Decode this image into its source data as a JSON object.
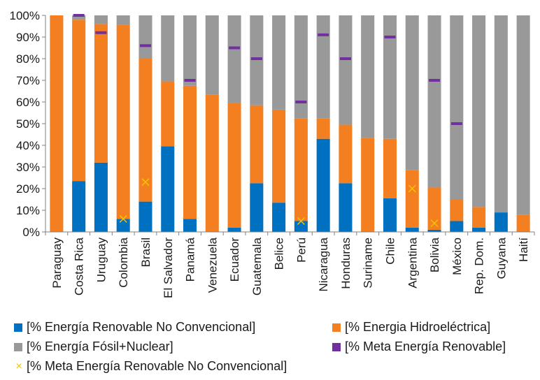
{
  "chart_data": {
    "type": "bar",
    "stacked": true,
    "categories": [
      "Paraguay",
      "Costa Rica",
      "Uruguay",
      "Colombia",
      "Brasil",
      "El Salvador",
      "Panamá",
      "Venezuela",
      "Ecuador",
      "Guatemala",
      "Belice",
      "Perú",
      "Nicaragua",
      "Honduras",
      "Suriname",
      "Chile",
      "Argentina",
      "Bolivia",
      "México",
      "Rep. Dom.",
      "Guyana",
      "Haití"
    ],
    "series": [
      {
        "name": "[% Energía Renovable No Convencional]",
        "color": "#0070c0",
        "values": [
          0,
          23.5,
          32,
          6,
          14,
          39.5,
          6,
          0,
          2,
          22.5,
          13.5,
          5,
          43,
          22.5,
          0,
          15.5,
          2,
          1,
          5,
          2,
          9,
          0
        ]
      },
      {
        "name": "[% Energia Hidroeléctrica]",
        "color": "#f47f20",
        "values": [
          100,
          74.5,
          64,
          89.5,
          66,
          30,
          61.5,
          63.5,
          57.5,
          36,
          43,
          47.5,
          9.5,
          27,
          43.5,
          27.5,
          26.5,
          19.5,
          10,
          9.5,
          0,
          8
        ]
      },
      {
        "name": "[% Energía Fósil+Nuclear]",
        "color": "#999999",
        "values": [
          0,
          2,
          4,
          4.5,
          20,
          30.5,
          32.5,
          36.5,
          40.5,
          41.5,
          43.5,
          47.5,
          47.5,
          50.5,
          56.5,
          57,
          71.5,
          79.5,
          85,
          88.5,
          91,
          92
        ]
      }
    ],
    "targets": [
      {
        "name": "[% Meta Energía Renovable]",
        "color": "#7030a0",
        "marker": "dash",
        "values": [
          null,
          100,
          92,
          null,
          86,
          null,
          70,
          null,
          85,
          80,
          null,
          60,
          91,
          80,
          null,
          90,
          null,
          70,
          50,
          null,
          null,
          null
        ]
      },
      {
        "name": "[% Meta Energía Renovable No Convencional]",
        "color": "#f5c400",
        "marker": "x",
        "values": [
          null,
          null,
          null,
          6,
          23,
          null,
          null,
          null,
          null,
          null,
          null,
          5,
          null,
          null,
          null,
          null,
          20,
          4,
          null,
          null,
          null,
          null
        ]
      }
    ],
    "yticks": [
      "0%",
      "10%",
      "20%",
      "30%",
      "40%",
      "50%",
      "60%",
      "70%",
      "80%",
      "90%",
      "100%"
    ],
    "ylim": [
      0,
      100
    ],
    "grid": false,
    "legend_position": "bottom"
  },
  "legend": {
    "renovable_nc": "[% Energía Renovable No Convencional]",
    "hidro": "[% Energia Hidroeléctrica]",
    "fosil": "[% Energía Fósil+Nuclear]",
    "meta_renovable": "[% Meta Energía Renovable]",
    "meta_renovable_nc": "[% Meta Energía Renovable No Convencional]"
  },
  "colors": {
    "renovable_nc": "#0070c0",
    "hidro": "#f47f20",
    "fosil": "#999999",
    "meta_renovable": "#7030a0",
    "meta_renovable_nc": "#f5c400"
  }
}
